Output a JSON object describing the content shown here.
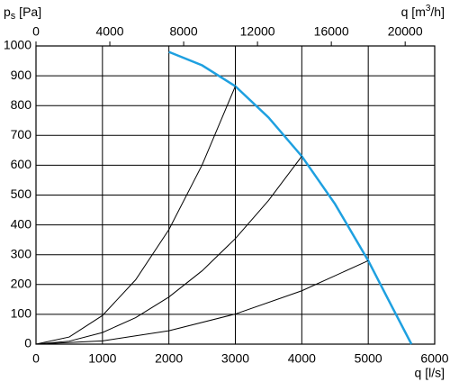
{
  "chart_data": {
    "type": "line",
    "ylabel": {
      "main": "p",
      "sub": "s",
      "unit": " [Pa]"
    },
    "xlabel": "q [l/s]",
    "x2label": {
      "main": "q [m",
      "sup": "3",
      "rest": "/h]"
    },
    "xlim": [
      0,
      6000
    ],
    "xticks": [
      0,
      1000,
      2000,
      3000,
      4000,
      5000,
      6000
    ],
    "x2lim": [
      0,
      21600
    ],
    "x2ticks": [
      0,
      4000,
      8000,
      12000,
      16000,
      20000
    ],
    "ylim": [
      0,
      1000
    ],
    "yticks": [
      0,
      100,
      200,
      300,
      400,
      500,
      600,
      700,
      800,
      900,
      1000
    ],
    "grid": true,
    "series": [
      {
        "color": "#1ea0e0",
        "x": [
          2000,
          2500,
          3000,
          3500,
          4000,
          4500,
          5000,
          5300,
          5650
        ],
        "values": [
          980,
          935,
          865,
          760,
          630,
          470,
          280,
          150,
          0
        ]
      },
      {
        "color": "#000000",
        "x": [
          0,
          500,
          1000,
          1500,
          2000,
          2500,
          3000
        ],
        "values": [
          0,
          24,
          96,
          216,
          384,
          601,
          865
        ]
      },
      {
        "color": "#000000",
        "x": [
          0,
          500,
          1000,
          1500,
          2000,
          2500,
          3000,
          3500,
          4000
        ],
        "values": [
          0,
          10,
          39,
          89,
          158,
          246,
          354,
          482,
          630
        ]
      },
      {
        "color": "#000000",
        "x": [
          0,
          1000,
          2000,
          3000,
          4000,
          5000
        ],
        "values": [
          0,
          11,
          45,
          101,
          179,
          280
        ]
      }
    ]
  }
}
